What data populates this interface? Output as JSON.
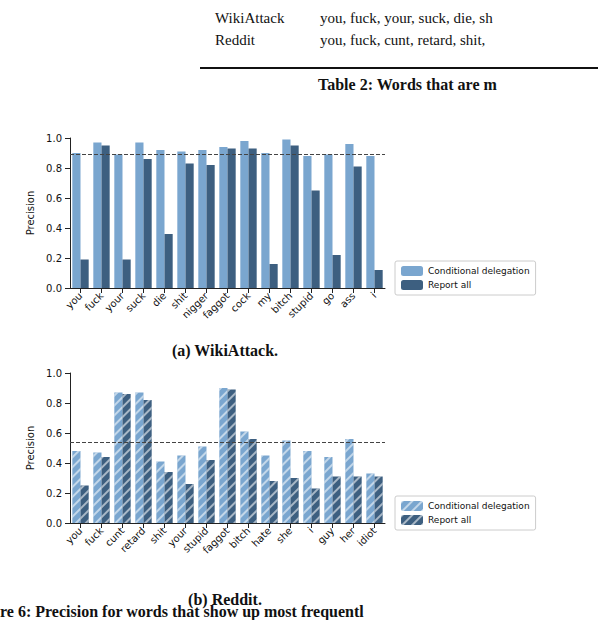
{
  "table_fragment": {
    "rows": [
      [
        "WikiAttack",
        "you, fuck, your, suck, die, sh"
      ],
      [
        "Reddit",
        "you, fuck, cunt, retard, shit,"
      ]
    ],
    "caption": "Table 2: Words that are m"
  },
  "chart_data": [
    {
      "type": "bar",
      "title": "(a) WikiAttack.",
      "categories": [
        "you",
        "fuck",
        "your",
        "suck",
        "die",
        "shit",
        "nigger",
        "faggot",
        "cock",
        "my",
        "bitch",
        "stupid",
        "go",
        "ass",
        "i"
      ],
      "series": [
        {
          "name": "Conditional delegation",
          "color": "#7aa6cf",
          "values": [
            0.9,
            0.97,
            0.89,
            0.97,
            0.92,
            0.91,
            0.92,
            0.94,
            0.98,
            0.9,
            0.99,
            0.88,
            0.89,
            0.96,
            0.88
          ]
        },
        {
          "name": "Report all",
          "color": "#3d5f80",
          "values": [
            0.19,
            0.95,
            0.19,
            0.86,
            0.36,
            0.83,
            0.82,
            0.93,
            0.93,
            0.16,
            0.95,
            0.65,
            0.22,
            0.81,
            0.12
          ]
        }
      ],
      "ylim": [
        0,
        1
      ],
      "yticks": [
        {
          "value": 0,
          "label": "0.0"
        },
        0.2,
        0.4,
        0.6,
        0.8,
        {
          "value": 1,
          "label": "1.0"
        }
      ],
      "y_label": "Precision",
      "reference_line": 0.89,
      "legend": "right",
      "grid": false
    },
    {
      "type": "bar",
      "title": "(b) Reddit.",
      "categories": [
        "you",
        "fuck",
        "cunt",
        "retard",
        "shit",
        "your",
        "stupid",
        "faggot",
        "bitch",
        "hate",
        "she",
        "i",
        "guy",
        "her",
        "idiot"
      ],
      "series": [
        {
          "name": "Conditional delegation",
          "color": "#7aa6cf",
          "values": [
            0.48,
            0.47,
            0.87,
            0.87,
            0.41,
            0.45,
            0.51,
            0.9,
            0.61,
            0.45,
            0.55,
            0.48,
            0.44,
            0.56,
            0.33
          ]
        },
        {
          "name": "Report all",
          "color": "#3d5f80",
          "values": [
            0.25,
            0.44,
            0.86,
            0.82,
            0.34,
            0.26,
            0.42,
            0.89,
            0.56,
            0.28,
            0.3,
            0.23,
            0.31,
            0.31,
            0.31
          ]
        }
      ],
      "ylim": [
        0,
        1
      ],
      "yticks": [
        {
          "value": 0,
          "label": "0.0"
        },
        0.2,
        0.4,
        0.6,
        0.8,
        {
          "value": 1,
          "label": "1.0"
        }
      ],
      "y_label": "Precision",
      "reference_line": 0.54,
      "legend": "right",
      "grid": false
    }
  ],
  "figure_caption": "re 6: Precision for words that show up most frequentl"
}
